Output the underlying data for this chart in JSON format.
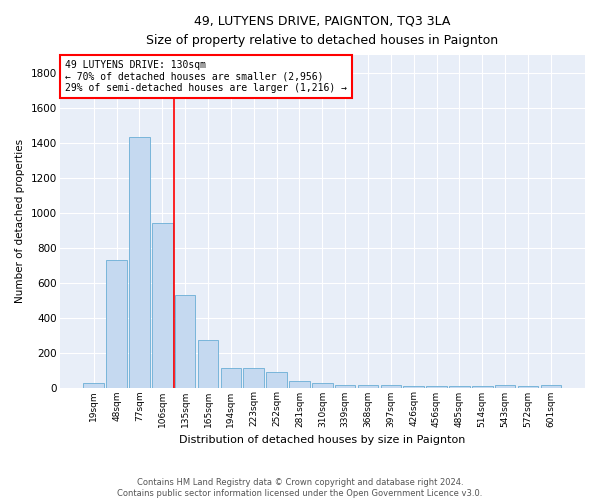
{
  "title": "49, LUTYENS DRIVE, PAIGNTON, TQ3 3LA",
  "subtitle": "Size of property relative to detached houses in Paignton",
  "xlabel": "Distribution of detached houses by size in Paignton",
  "ylabel": "Number of detached properties",
  "footnote": "Contains HM Land Registry data © Crown copyright and database right 2024.\nContains public sector information licensed under the Open Government Licence v3.0.",
  "bar_labels": [
    "19sqm",
    "48sqm",
    "77sqm",
    "106sqm",
    "135sqm",
    "165sqm",
    "194sqm",
    "223sqm",
    "252sqm",
    "281sqm",
    "310sqm",
    "339sqm",
    "368sqm",
    "397sqm",
    "426sqm",
    "456sqm",
    "485sqm",
    "514sqm",
    "543sqm",
    "572sqm",
    "601sqm"
  ],
  "bar_values": [
    25,
    730,
    1430,
    940,
    530,
    270,
    110,
    110,
    90,
    40,
    25,
    15,
    15,
    15,
    10,
    10,
    10,
    10,
    15,
    10,
    15
  ],
  "bar_color": "#c5d9f0",
  "bar_edge_color": "#6aaed6",
  "annotation_text_line1": "49 LUTYENS DRIVE: 130sqm",
  "annotation_text_line2": "← 70% of detached houses are smaller (2,956)",
  "annotation_text_line3": "29% of semi-detached houses are larger (1,216) →",
  "annotation_box_color": "white",
  "annotation_box_edgecolor": "red",
  "vline_color": "red",
  "background_color": "#e8eef8",
  "grid_color": "white",
  "ylim": [
    0,
    1900
  ],
  "yticks": [
    0,
    200,
    400,
    600,
    800,
    1000,
    1200,
    1400,
    1600,
    1800
  ]
}
